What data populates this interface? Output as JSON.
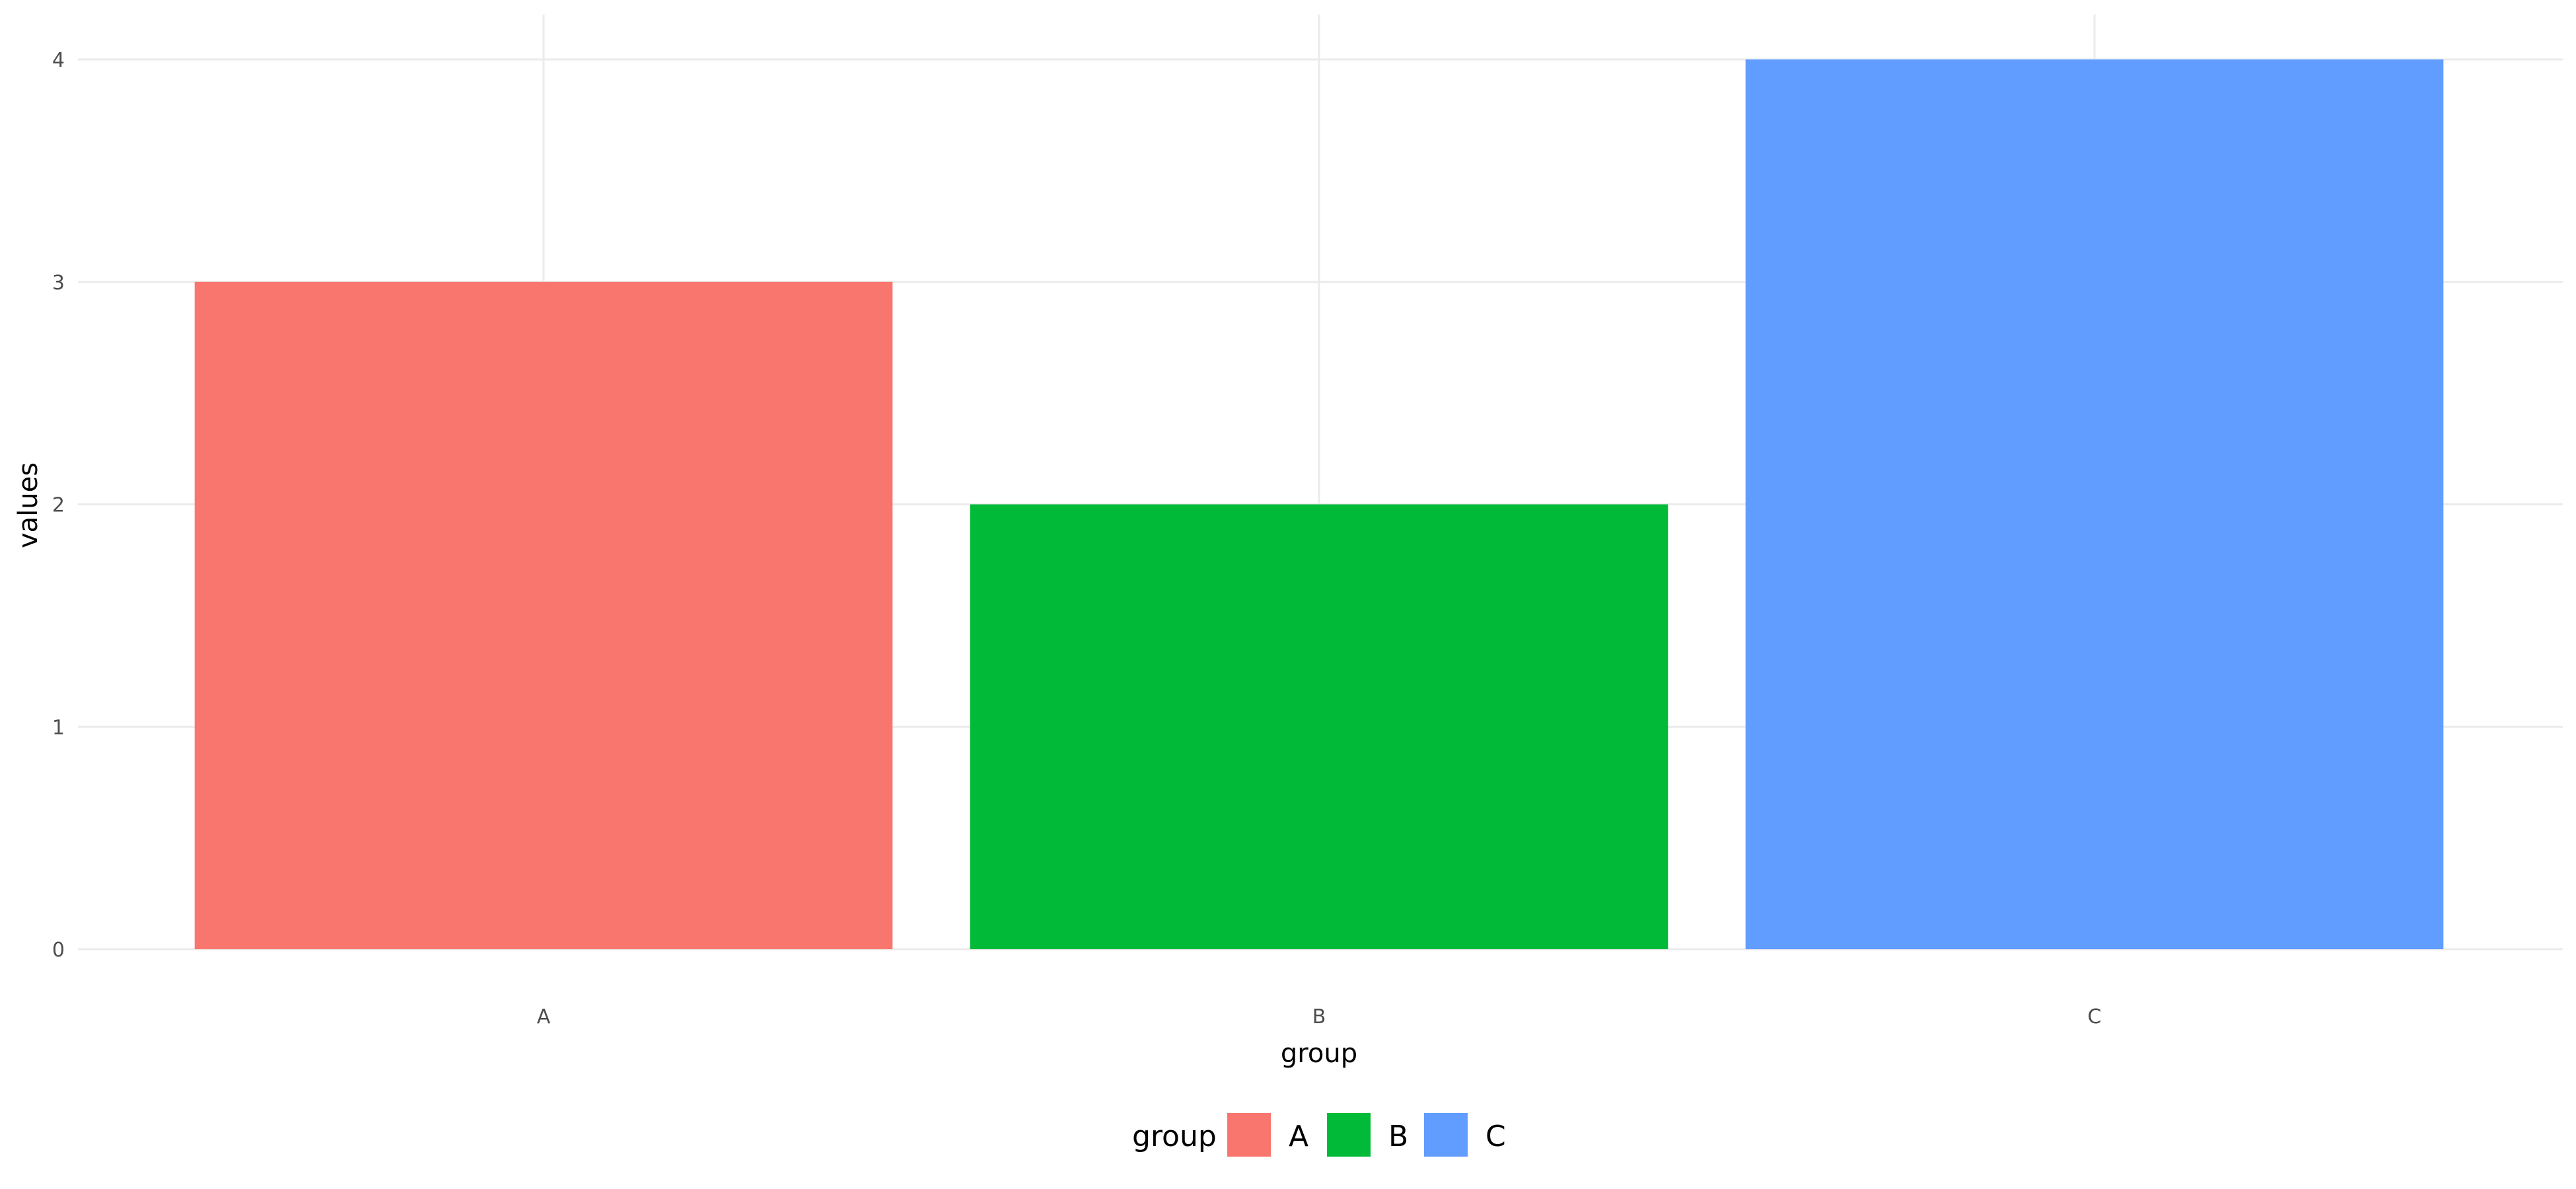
{
  "chart_data": {
    "type": "bar",
    "categories": [
      "A",
      "B",
      "C"
    ],
    "values": [
      3,
      2,
      4
    ],
    "colors": [
      "#F8766D",
      "#00BA38",
      "#619CFF"
    ],
    "xlabel": "group",
    "ylabel": "values",
    "ylim": [
      0,
      4
    ],
    "yticks": [
      "0",
      "1",
      "2",
      "3",
      "4"
    ],
    "grid": true,
    "legend": {
      "title": "group",
      "placement": "bottom",
      "entries": [
        "A",
        "B",
        "C"
      ]
    }
  }
}
